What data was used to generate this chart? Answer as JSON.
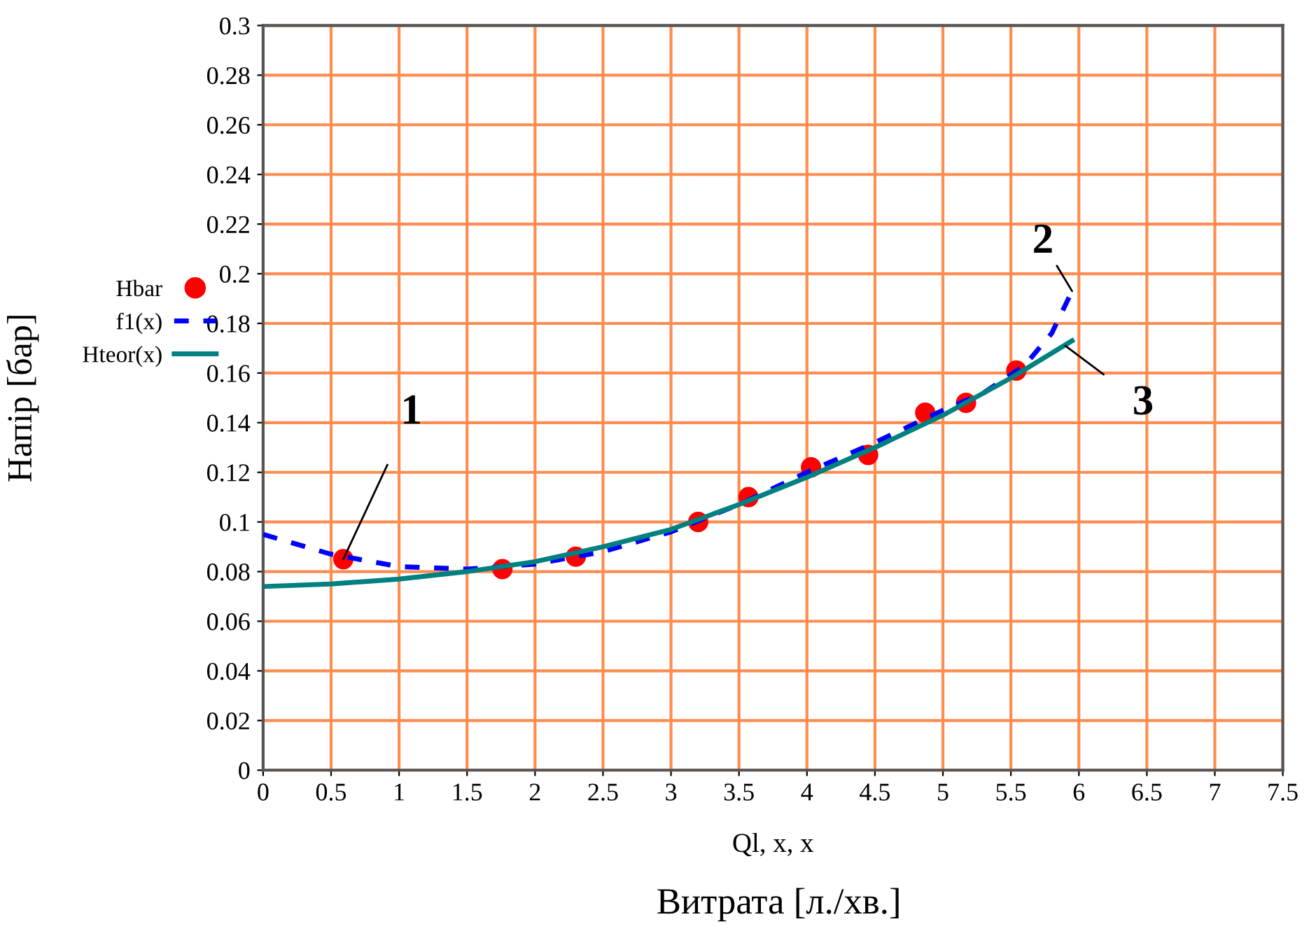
{
  "chart_data": {
    "type": "line",
    "xlabel": "Ql, x, x",
    "ylabel": "Напір [бар]",
    "xlim": [
      0,
      7.5
    ],
    "ylim": [
      0,
      0.3
    ],
    "xticks": [
      0,
      0.5,
      1,
      1.5,
      2,
      2.5,
      3,
      3.5,
      4,
      4.5,
      5,
      5.5,
      6,
      6.5,
      7,
      7.5
    ],
    "yticks": [
      0,
      0.02,
      0.04,
      0.06,
      0.08,
      0.1,
      0.12,
      0.14,
      0.16,
      0.18,
      0.2,
      0.22,
      0.24,
      0.26,
      0.28,
      0.3
    ],
    "grid": true,
    "legend": "left",
    "series": [
      {
        "name": "Hbar",
        "type": "scatter",
        "marker": "circle",
        "color": "#ff0000",
        "x": [
          0.59,
          1.76,
          2.3,
          3.2,
          3.57,
          4.03,
          4.45,
          4.87,
          5.17,
          5.54
        ],
        "values": [
          0.085,
          0.081,
          0.086,
          0.1,
          0.11,
          0.122,
          0.127,
          0.144,
          0.148,
          0.161
        ]
      },
      {
        "name": "f1(x)",
        "line_style": "dashed",
        "color": "#0000ff",
        "x": [
          0,
          0.5,
          1,
          1.5,
          2,
          2.5,
          3,
          3.5,
          4,
          4.5,
          5,
          5.3,
          5.6,
          5.8,
          5.95
        ],
        "values": [
          0.095,
          0.087,
          0.082,
          0.081,
          0.083,
          0.088,
          0.096,
          0.107,
          0.12,
          0.132,
          0.145,
          0.152,
          0.163,
          0.176,
          0.193
        ]
      },
      {
        "name": "Hteor(x)",
        "line_style": "solid",
        "color": "#008080",
        "x": [
          0,
          0.5,
          1,
          1.5,
          2,
          2.5,
          3,
          3.5,
          4,
          4.5,
          5,
          5.5,
          5.95
        ],
        "values": [
          0.074,
          0.075,
          0.077,
          0.08,
          0.084,
          0.09,
          0.097,
          0.107,
          0.118,
          0.13,
          0.143,
          0.158,
          0.173
        ]
      }
    ],
    "annotations": [
      {
        "text": "1",
        "x": 0.59,
        "y": 0.085
      },
      {
        "text": "2",
        "x": 5.95,
        "y": 0.193
      },
      {
        "text": "3",
        "x": 5.9,
        "y": 0.171
      },
      "Витрата [л./хв.]"
    ]
  }
}
